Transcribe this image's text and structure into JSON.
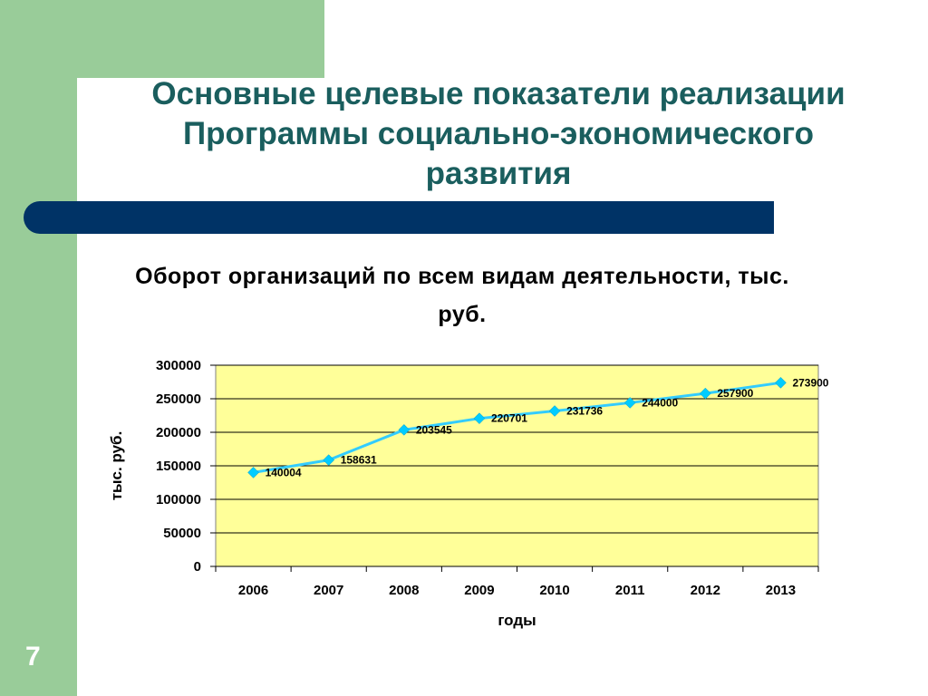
{
  "slide": {
    "title": "Основные целевые показатели реализации Программы социально-экономического развития",
    "page_number": "7"
  },
  "colors": {
    "green": "#99cc99",
    "navy_bar": "#003366",
    "title_text": "#1a5e5e",
    "plot_background": "#ffff99",
    "line": "#33ccff",
    "marker": "#00ccff"
  },
  "chart_data": {
    "type": "line",
    "title": "Оборот организаций по всем видам деятельности, тыс. руб.",
    "xlabel": "годы",
    "ylabel": "тыс. руб.",
    "categories": [
      "2006",
      "2007",
      "2008",
      "2009",
      "2010",
      "2011",
      "2012",
      "2013"
    ],
    "series": [
      {
        "values": [
          140004,
          158631,
          203545,
          220701,
          231736,
          244000,
          257900,
          273900
        ]
      }
    ],
    "data_labels": [
      "140004",
      "158631",
      "203545",
      "220701",
      "231736",
      "244000",
      "257900",
      "273900"
    ],
    "y_ticks": [
      "0",
      "50000",
      "100000",
      "150000",
      "200000",
      "250000",
      "300000"
    ],
    "ylim": [
      0,
      300000
    ],
    "grid": true,
    "legend": "none"
  }
}
